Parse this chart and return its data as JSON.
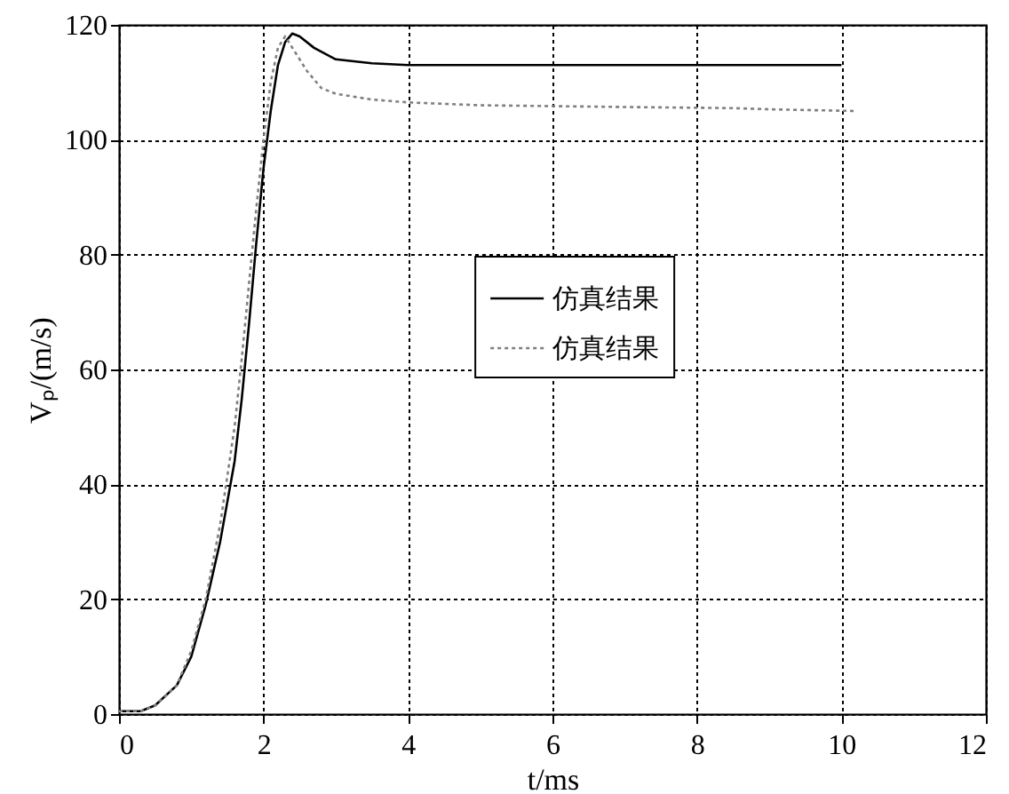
{
  "chart_data": {
    "type": "line",
    "xlabel": "t/ms",
    "ylabel": "Vₚ/(m/s)",
    "xlim": [
      0,
      12
    ],
    "xticks": [
      0,
      2,
      4,
      6,
      8,
      10,
      12
    ],
    "ylim": [
      0,
      120
    ],
    "yticks": [
      0,
      20,
      40,
      60,
      80,
      100,
      120
    ],
    "grid": true,
    "legend": "right",
    "marker": "none",
    "series": [
      {
        "name": "仿真结果",
        "color": "#000000",
        "line_style": "solid",
        "x": [
          0,
          0.3,
          0.5,
          0.8,
          1.0,
          1.2,
          1.4,
          1.6,
          1.7,
          1.8,
          1.9,
          2.0,
          2.1,
          2.2,
          2.3,
          2.4,
          2.5,
          2.7,
          3.0,
          3.5,
          4.0,
          6.0,
          8.0,
          10.0
        ],
        "values": [
          0.5,
          0.5,
          1.5,
          5,
          10,
          19,
          30,
          44,
          55,
          68,
          82,
          95,
          105,
          113,
          117,
          118.5,
          118,
          116,
          114,
          113.3,
          113,
          113,
          113,
          113
        ]
      },
      {
        "name": "仿真结果",
        "color": "#808080",
        "line_style": "dotted",
        "x": [
          0,
          0.3,
          0.5,
          0.8,
          1.0,
          1.2,
          1.4,
          1.6,
          1.7,
          1.8,
          1.9,
          2.0,
          2.1,
          2.2,
          2.3,
          2.4,
          2.6,
          2.8,
          3.0,
          3.5,
          4.0,
          5.0,
          7.0,
          8.5,
          9.0,
          10.2
        ],
        "values": [
          0.5,
          0.5,
          1.5,
          5,
          11,
          20,
          33,
          50,
          62,
          75,
          88,
          100,
          110,
          116,
          118,
          116,
          112,
          109,
          108,
          107,
          106.5,
          106,
          105.7,
          105.5,
          105.3,
          105
        ]
      }
    ]
  }
}
